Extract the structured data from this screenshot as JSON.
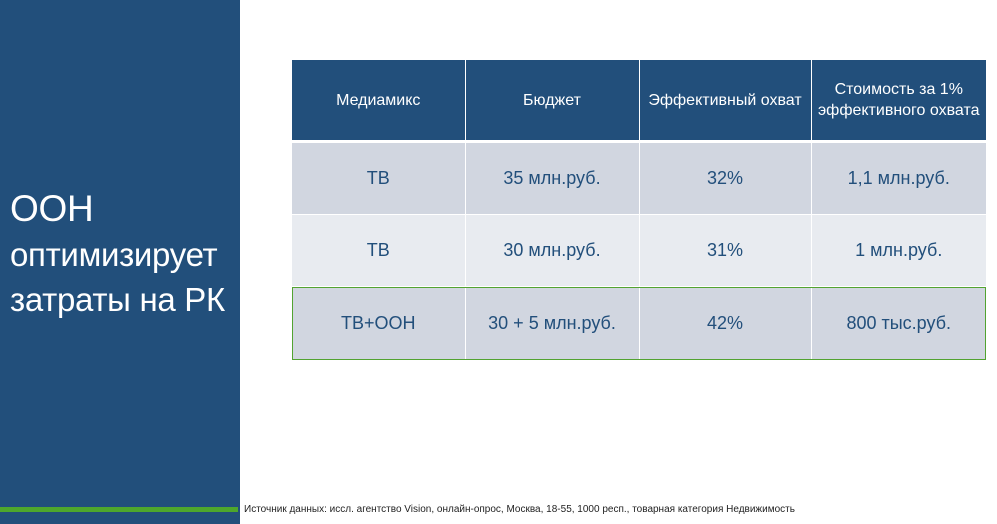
{
  "title": {
    "line1": "ООН",
    "line2": "оптимизирует",
    "line3": "затраты на РК"
  },
  "table": {
    "headers": [
      "Медиамикс",
      "Бюджет",
      "Эффективный охват",
      "Стоимость за 1% эффективного охвата"
    ],
    "rows": [
      [
        "ТВ",
        "35 млн.руб.",
        "32%",
        "1,1 млн.руб."
      ],
      [
        "ТВ",
        "30 млн.руб.",
        "31%",
        "1 млн.руб."
      ],
      [
        "ТВ+ООН",
        "30 + 5 млн.руб.",
        "42%",
        "800 тыс.руб."
      ]
    ]
  },
  "source": "Источник данных: иссл. агентство Vision, онлайн-опрос, Москва, 18-55, 1000 респ., товарная категория Недвижимость",
  "colors": {
    "panel": "#224f7b",
    "accent_green": "#4ea72c",
    "row_dark": "#d1d6e0",
    "row_light": "#e8ebf0"
  }
}
